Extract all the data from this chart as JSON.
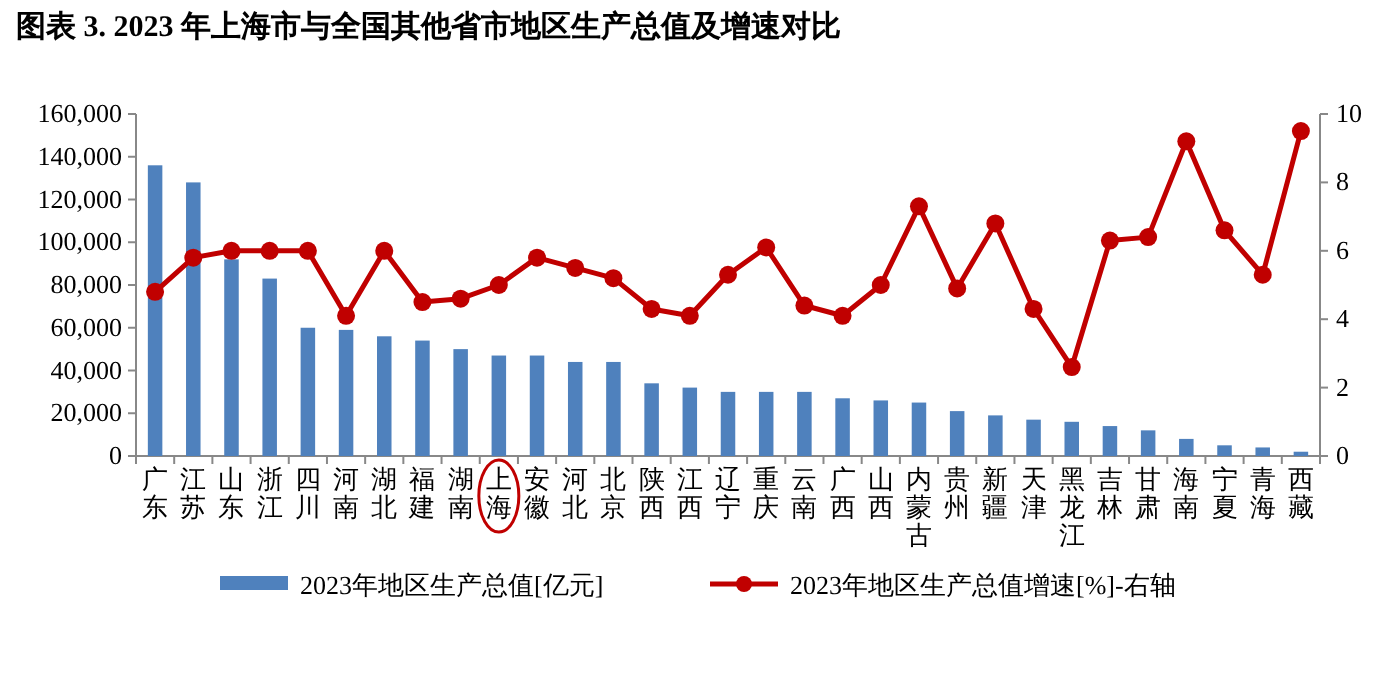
{
  "chart_data": {
    "type": "bar",
    "title": "图表 3.  2023 年上海市与全国其他省市地区生产总值及增速对比",
    "categories": [
      "广东",
      "江苏",
      "山东",
      "浙江",
      "四川",
      "河南",
      "湖北",
      "福建",
      "湖南",
      "上海",
      "安徽",
      "河北",
      "北京",
      "陕西",
      "江西",
      "辽宁",
      "重庆",
      "云南",
      "广西",
      "山西",
      "内蒙古",
      "贵州",
      "新疆",
      "天津",
      "黑龙江",
      "吉林",
      "甘肃",
      "海南",
      "宁夏",
      "青海",
      "西藏"
    ],
    "series": [
      {
        "name": "2023年地区生产总值[亿元]",
        "color": "#4f81bd",
        "values": [
          136000,
          128000,
          92000,
          83000,
          60000,
          59000,
          56000,
          54000,
          50000,
          47000,
          47000,
          44000,
          44000,
          34000,
          32000,
          30000,
          30000,
          30000,
          27000,
          26000,
          25000,
          21000,
          19000,
          17000,
          16000,
          14000,
          12000,
          8000,
          5000,
          4000,
          2000
        ]
      },
      {
        "name": "2023年地区生产总值增速[%]-右轴",
        "type": "line",
        "axis": "y2",
        "color": "#c00000",
        "values": [
          4.8,
          5.8,
          6.0,
          6.0,
          6.0,
          4.1,
          6.0,
          4.5,
          4.6,
          5.0,
          5.8,
          5.5,
          5.2,
          4.3,
          4.1,
          5.3,
          6.1,
          4.4,
          4.1,
          5.0,
          7.3,
          4.9,
          6.8,
          4.3,
          2.6,
          6.3,
          6.4,
          9.2,
          6.6,
          5.3,
          9.5
        ]
      }
    ],
    "ylim": [
      0,
      160000
    ],
    "yticks": [
      0,
      {
        "value": 20000,
        "label": "20,000"
      },
      {
        "value": 40000,
        "label": "40,000"
      },
      {
        "value": 60000,
        "label": "60,000"
      },
      {
        "value": 80000,
        "label": "80,000"
      },
      {
        "value": 100000,
        "label": "100,000"
      },
      {
        "value": 120000,
        "label": "120,000"
      },
      {
        "value": 140000,
        "label": "140,000"
      },
      {
        "value": 160000,
        "label": "160,000"
      }
    ],
    "y2lim": [
      0,
      10
    ],
    "y2ticks": [
      0,
      2,
      4,
      6,
      8,
      10
    ],
    "legend": "bottom",
    "marker": "circle",
    "line_style": "solid",
    "grid": false
  }
}
